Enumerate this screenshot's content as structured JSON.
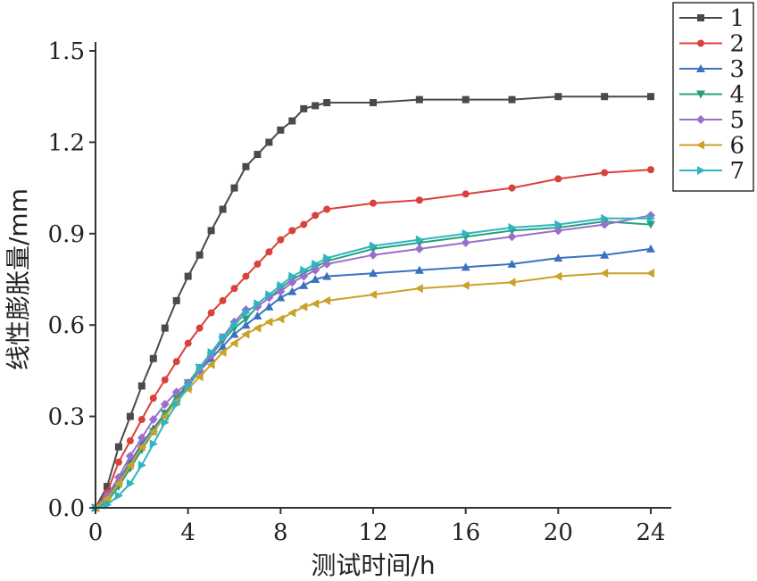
{
  "chart_data": {
    "type": "line",
    "xlabel": "测试时间/h",
    "ylabel": "线性膨胀量/mm",
    "xlim": [
      0,
      24
    ],
    "ylim": [
      0,
      1.5
    ],
    "xticks": [
      "0",
      "4",
      "8",
      "12",
      "16",
      "20",
      "24"
    ],
    "yticks": [
      "0.0",
      "0.3",
      "0.6",
      "0.9",
      "1.2",
      "1.5"
    ],
    "grid": false,
    "legend_position": "top-right",
    "series": [
      {
        "name": "1",
        "color": "#4a4a4a",
        "marker": "square",
        "x": [
          0,
          0.5,
          1,
          1.5,
          2,
          2.5,
          3,
          3.5,
          4,
          4.5,
          5,
          5.5,
          6,
          6.5,
          7,
          7.5,
          8,
          8.5,
          9,
          9.5,
          10,
          12,
          14,
          16,
          18,
          20,
          22,
          24
        ],
        "y": [
          0,
          0.07,
          0.2,
          0.3,
          0.4,
          0.49,
          0.59,
          0.68,
          0.76,
          0.83,
          0.91,
          0.98,
          1.05,
          1.12,
          1.16,
          1.2,
          1.24,
          1.27,
          1.31,
          1.32,
          1.33,
          1.33,
          1.34,
          1.34,
          1.34,
          1.35,
          1.35,
          1.35
        ]
      },
      {
        "name": "2",
        "color": "#d9413b",
        "marker": "circle",
        "x": [
          0,
          0.5,
          1,
          1.5,
          2,
          2.5,
          3,
          3.5,
          4,
          4.5,
          5,
          5.5,
          6,
          6.5,
          7,
          7.5,
          8,
          8.5,
          9,
          9.5,
          10,
          12,
          14,
          16,
          18,
          20,
          22,
          24
        ],
        "y": [
          0,
          0.05,
          0.15,
          0.22,
          0.29,
          0.36,
          0.42,
          0.48,
          0.54,
          0.59,
          0.64,
          0.68,
          0.72,
          0.76,
          0.8,
          0.84,
          0.88,
          0.91,
          0.93,
          0.96,
          0.98,
          1.0,
          1.01,
          1.03,
          1.05,
          1.08,
          1.1,
          1.11
        ]
      },
      {
        "name": "3",
        "color": "#3a72c0",
        "marker": "triangle-up",
        "x": [
          0,
          0.5,
          1,
          1.5,
          2,
          2.5,
          3,
          3.5,
          4,
          4.5,
          5,
          5.5,
          6,
          6.5,
          7,
          7.5,
          8,
          8.5,
          9,
          9.5,
          10,
          12,
          14,
          16,
          18,
          20,
          22,
          24
        ],
        "y": [
          0,
          0.03,
          0.09,
          0.15,
          0.21,
          0.26,
          0.31,
          0.36,
          0.4,
          0.45,
          0.49,
          0.53,
          0.57,
          0.6,
          0.63,
          0.66,
          0.69,
          0.71,
          0.73,
          0.75,
          0.76,
          0.77,
          0.78,
          0.79,
          0.8,
          0.82,
          0.83,
          0.85
        ]
      },
      {
        "name": "4",
        "color": "#27a07a",
        "marker": "triangle-down",
        "x": [
          0,
          0.5,
          1,
          1.5,
          2,
          2.5,
          3,
          3.5,
          4,
          4.5,
          5,
          5.5,
          6,
          6.5,
          7,
          7.5,
          8,
          8.5,
          9,
          9.5,
          10,
          12,
          14,
          16,
          18,
          20,
          22,
          24
        ],
        "y": [
          0,
          0.02,
          0.07,
          0.13,
          0.19,
          0.25,
          0.31,
          0.36,
          0.41,
          0.46,
          0.5,
          0.55,
          0.59,
          0.62,
          0.66,
          0.69,
          0.72,
          0.75,
          0.77,
          0.79,
          0.81,
          0.85,
          0.87,
          0.89,
          0.91,
          0.92,
          0.94,
          0.93
        ]
      },
      {
        "name": "5",
        "color": "#9b6fc9",
        "marker": "diamond",
        "x": [
          0,
          0.5,
          1,
          1.5,
          2,
          2.5,
          3,
          3.5,
          4,
          4.5,
          5,
          5.5,
          6,
          6.5,
          7,
          7.5,
          8,
          8.5,
          9,
          9.5,
          10,
          12,
          14,
          16,
          18,
          20,
          22,
          24
        ],
        "y": [
          0,
          0.04,
          0.1,
          0.17,
          0.23,
          0.29,
          0.34,
          0.38,
          0.41,
          0.45,
          0.5,
          0.56,
          0.61,
          0.65,
          0.66,
          0.69,
          0.71,
          0.74,
          0.76,
          0.78,
          0.8,
          0.83,
          0.85,
          0.87,
          0.89,
          0.91,
          0.93,
          0.96
        ]
      },
      {
        "name": "6",
        "color": "#c9a227",
        "marker": "triangle-left",
        "x": [
          0,
          0.5,
          1,
          1.5,
          2,
          2.5,
          3,
          3.5,
          4,
          4.5,
          5,
          5.5,
          6,
          6.5,
          7,
          7.5,
          8,
          8.5,
          9,
          9.5,
          10,
          12,
          14,
          16,
          18,
          20,
          22,
          24
        ],
        "y": [
          0,
          0.03,
          0.08,
          0.14,
          0.2,
          0.25,
          0.3,
          0.35,
          0.39,
          0.43,
          0.47,
          0.51,
          0.54,
          0.57,
          0.59,
          0.61,
          0.62,
          0.64,
          0.66,
          0.67,
          0.68,
          0.7,
          0.72,
          0.73,
          0.74,
          0.76,
          0.77,
          0.77
        ]
      },
      {
        "name": "7",
        "color": "#2fb5c0",
        "marker": "triangle-right",
        "x": [
          0,
          0.5,
          1,
          1.5,
          2,
          2.5,
          3,
          3.5,
          4,
          4.5,
          5,
          5.5,
          6,
          6.5,
          7,
          7.5,
          8,
          8.5,
          9,
          9.5,
          10,
          12,
          14,
          16,
          18,
          20,
          22,
          24
        ],
        "y": [
          0,
          0.01,
          0.04,
          0.08,
          0.14,
          0.21,
          0.28,
          0.34,
          0.4,
          0.46,
          0.51,
          0.56,
          0.6,
          0.64,
          0.67,
          0.7,
          0.73,
          0.76,
          0.78,
          0.8,
          0.82,
          0.86,
          0.88,
          0.9,
          0.92,
          0.93,
          0.95,
          0.95
        ]
      }
    ]
  }
}
